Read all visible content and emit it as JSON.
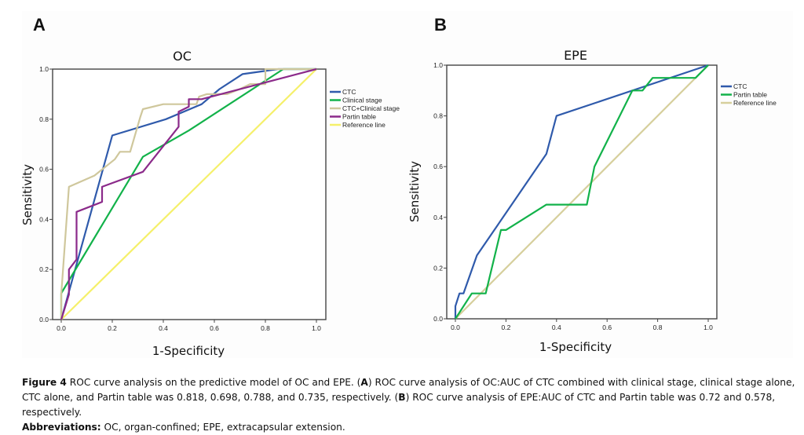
{
  "panels": [
    {
      "letter": "A"
    },
    {
      "letter": "B"
    }
  ],
  "chart_data": [
    {
      "type": "line",
      "panel": "A",
      "title": "OC",
      "xlabel": "1-Specificity",
      "ylabel": "Sensitivity",
      "xlim": [
        0,
        1
      ],
      "ylim": [
        0,
        1
      ],
      "xticks": [
        "0.0",
        "0.2",
        "0.4",
        "0.6",
        "0.8",
        "1.0"
      ],
      "yticks": [
        "0.0",
        "0.2",
        "0.4",
        "0.6",
        "0.8",
        "1.0"
      ],
      "grid": false,
      "legend_position": "right",
      "series": [
        {
          "name": "CTC",
          "color": "#2f5aab",
          "points": [
            [
              0,
              0
            ],
            [
              0.2,
              0.735
            ],
            [
              0.41,
              0.8
            ],
            [
              0.55,
              0.86
            ],
            [
              0.62,
              0.92
            ],
            [
              0.71,
              0.98
            ],
            [
              0.85,
              1.0
            ],
            [
              1,
              1
            ]
          ]
        },
        {
          "name": "Clinical stage",
          "color": "#12b24a",
          "points": [
            [
              0,
              0
            ],
            [
              0,
              0.105
            ],
            [
              0.32,
              0.65
            ],
            [
              0.5,
              0.755
            ],
            [
              0.87,
              1.0
            ],
            [
              1,
              1
            ]
          ]
        },
        {
          "name": "CTC+Clinical stage",
          "color": "#cfc79c",
          "points": [
            [
              0,
              0
            ],
            [
              0,
              0.1
            ],
            [
              0.03,
              0.53
            ],
            [
              0.13,
              0.575
            ],
            [
              0.21,
              0.64
            ],
            [
              0.23,
              0.67
            ],
            [
              0.27,
              0.67
            ],
            [
              0.31,
              0.81
            ],
            [
              0.32,
              0.84
            ],
            [
              0.4,
              0.86
            ],
            [
              0.53,
              0.86
            ],
            [
              0.54,
              0.89
            ],
            [
              0.57,
              0.9
            ],
            [
              0.65,
              0.9
            ],
            [
              0.7,
              0.92
            ],
            [
              0.74,
              0.94
            ],
            [
              0.8,
              0.94
            ],
            [
              0.8,
              1.0
            ],
            [
              1,
              1
            ]
          ]
        },
        {
          "name": "Partin table",
          "color": "#8b2a8a",
          "points": [
            [
              0,
              0
            ],
            [
              0.03,
              0.1
            ],
            [
              0.03,
              0.2
            ],
            [
              0.06,
              0.24
            ],
            [
              0.06,
              0.43
            ],
            [
              0.16,
              0.47
            ],
            [
              0.16,
              0.53
            ],
            [
              0.32,
              0.59
            ],
            [
              0.46,
              0.77
            ],
            [
              0.46,
              0.83
            ],
            [
              0.5,
              0.85
            ],
            [
              0.5,
              0.88
            ],
            [
              0.55,
              0.88
            ],
            [
              1,
              1
            ]
          ]
        },
        {
          "name": "Reference line",
          "color": "#f5f06a",
          "points": [
            [
              0,
              0
            ],
            [
              1,
              1
            ]
          ]
        }
      ]
    },
    {
      "type": "line",
      "panel": "B",
      "title": "EPE",
      "xlabel": "1-Specificity",
      "ylabel": "Sensitivity",
      "xlim": [
        0,
        1
      ],
      "ylim": [
        0,
        1
      ],
      "xticks": [
        "0.0",
        "0.2",
        "0.4",
        "0.6",
        "0.8",
        "1.0"
      ],
      "yticks": [
        "0.0",
        "0.2",
        "0.4",
        "0.6",
        "0.8",
        "1.0"
      ],
      "grid": false,
      "legend_position": "right",
      "series": [
        {
          "name": "CTC",
          "color": "#2f5aab",
          "points": [
            [
              0,
              0
            ],
            [
              0,
              0.05
            ],
            [
              0.016,
              0.1
            ],
            [
              0.032,
              0.1
            ],
            [
              0.085,
              0.25
            ],
            [
              0.36,
              0.65
            ],
            [
              0.4,
              0.8
            ],
            [
              1,
              1
            ]
          ]
        },
        {
          "name": "Partin table",
          "color": "#12b24a",
          "points": [
            [
              0,
              0
            ],
            [
              0.065,
              0.1
            ],
            [
              0.12,
              0.1
            ],
            [
              0.18,
              0.35
            ],
            [
              0.2,
              0.35
            ],
            [
              0.36,
              0.45
            ],
            [
              0.52,
              0.45
            ],
            [
              0.55,
              0.6
            ],
            [
              0.7,
              0.9
            ],
            [
              0.74,
              0.9
            ],
            [
              0.78,
              0.95
            ],
            [
              0.95,
              0.95
            ],
            [
              1,
              1
            ]
          ]
        },
        {
          "name": "Reference line",
          "color": "#d6cf9c",
          "points": [
            [
              0,
              0
            ],
            [
              1,
              1
            ]
          ]
        }
      ]
    }
  ],
  "caption": {
    "fig_label": "Figure 4",
    "line1_a": " ROC curve analysis on the predictive model of OC and EPE. (",
    "a_label": "A",
    "line1_b": ") ROC curve analysis of OC:AUC of CTC combined with clinical stage, clinical stage alone, CTC alone, and Partin table was 0.818, 0.698, 0.788, and 0.735, respectively. (",
    "b_label": "B",
    "line1_c": ") ROC curve analysis of EPE:AUC of CTC and Partin table was 0.72 and 0.578, respectively.",
    "abbr_label": "Abbreviations:",
    "abbr_text": " OC, organ-confined; EPE, extracapsular extension."
  }
}
